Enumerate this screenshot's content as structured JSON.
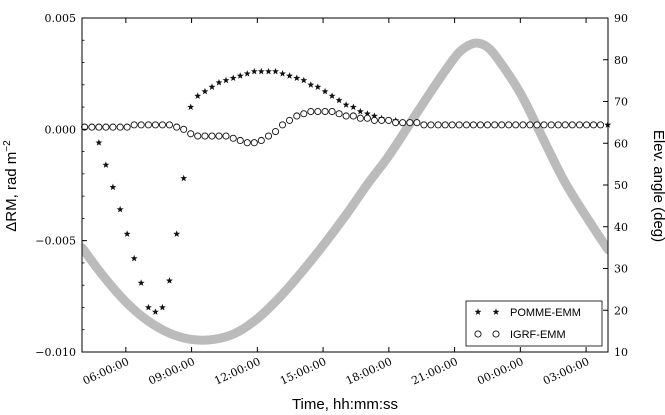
{
  "chart_data": {
    "type": "scatter",
    "xlabel": "Time, hh:mm:ss",
    "ylabel_left": "ΔRM, rad m",
    "ylabel_left_exp": "−2",
    "ylabel_right": "Elev. angle (deg)",
    "ylim_left": [
      -0.01,
      0.005
    ],
    "ylim_right": [
      10,
      90
    ],
    "xlim_hours": [
      4.0,
      28.0
    ],
    "x_ticks": [
      {
        "hour": 6,
        "label": "06:00:00"
      },
      {
        "hour": 9,
        "label": "09:00:00"
      },
      {
        "hour": 12,
        "label": "12:00:00"
      },
      {
        "hour": 15,
        "label": "15:00:00"
      },
      {
        "hour": 18,
        "label": "18:00:00"
      },
      {
        "hour": 21,
        "label": "21:00:00"
      },
      {
        "hour": 24,
        "label": "00:00:00"
      },
      {
        "hour": 27,
        "label": "03:00:00"
      }
    ],
    "y_ticks_left": [
      {
        "value": 0.005,
        "label": "0.005"
      },
      {
        "value": 0.0,
        "label": "0.000"
      },
      {
        "value": -0.005,
        "label": "−0.005"
      },
      {
        "value": -0.01,
        "label": "−0.010"
      }
    ],
    "y_ticks_right": [
      {
        "value": 10,
        "label": "10"
      },
      {
        "value": 20,
        "label": "20"
      },
      {
        "value": 30,
        "label": "30"
      },
      {
        "value": 40,
        "label": "40"
      },
      {
        "value": 50,
        "label": "50"
      },
      {
        "value": 60,
        "label": "60"
      },
      {
        "value": 70,
        "label": "70"
      },
      {
        "value": 80,
        "label": "80"
      },
      {
        "value": 90,
        "label": "90"
      }
    ],
    "legend_position": "bottom-right",
    "grid": false,
    "series": [
      {
        "name": "POMME-EMM",
        "marker": "star",
        "axis": "left",
        "x": [
          4.12,
          4.45,
          4.77,
          5.09,
          5.41,
          5.74,
          6.06,
          6.38,
          6.7,
          7.03,
          7.35,
          7.67,
          7.99,
          8.32,
          8.64,
          8.96,
          9.28,
          9.61,
          9.93,
          10.25,
          10.57,
          10.9,
          11.22,
          11.54,
          11.86,
          12.18,
          12.51,
          12.83,
          13.15,
          13.47,
          13.8,
          14.12,
          14.44,
          14.76,
          15.09,
          15.41,
          15.73,
          16.05,
          16.38,
          16.7,
          17.02,
          17.34,
          17.67,
          17.99,
          18.31,
          18.63,
          18.96,
          19.28,
          19.6,
          19.92,
          20.25,
          20.57,
          20.89,
          21.21,
          21.54,
          21.86,
          22.18,
          22.5,
          22.83,
          23.15,
          23.47,
          23.79,
          24.12,
          24.44,
          24.76,
          25.08,
          25.41,
          25.73,
          26.05,
          26.37,
          26.7,
          27.02,
          27.34,
          27.66,
          27.99
        ],
        "y": [
          0.0001,
          0.0001,
          -0.0006,
          -0.0016,
          -0.0026,
          -0.0036,
          -0.0047,
          -0.0058,
          -0.0069,
          -0.008,
          -0.0082,
          -0.008,
          -0.0068,
          -0.0047,
          -0.0022,
          0.001,
          0.0015,
          0.0017,
          0.0019,
          0.0021,
          0.0022,
          0.0023,
          0.0024,
          0.0025,
          0.0026,
          0.0026,
          0.0026,
          0.0026,
          0.0025,
          0.0024,
          0.0023,
          0.0022,
          0.002,
          0.0019,
          0.0017,
          0.0015,
          0.0013,
          0.0011,
          0.001,
          0.0008,
          0.0007,
          0.0006,
          0.0005,
          0.0004,
          0.0004,
          0.0003,
          0.0003,
          0.0003,
          0.0002,
          0.0002,
          0.0002,
          0.0002,
          0.0002,
          0.0002,
          0.0002,
          0.0002,
          0.0002,
          0.0002,
          0.0002,
          0.0002,
          0.0002,
          0.0002,
          0.0002,
          0.0002,
          0.0002,
          0.0002,
          0.0002,
          0.0002,
          0.0002,
          0.0002,
          0.0002,
          0.0002,
          0.0002,
          0.0002,
          0.0002
        ]
      },
      {
        "name": "IGRF-EMM",
        "marker": "circle",
        "axis": "left",
        "x": [
          4.12,
          4.45,
          4.77,
          5.09,
          5.41,
          5.74,
          6.06,
          6.38,
          6.7,
          7.03,
          7.35,
          7.67,
          7.99,
          8.32,
          8.64,
          8.96,
          9.28,
          9.61,
          9.93,
          10.25,
          10.57,
          10.9,
          11.22,
          11.54,
          11.86,
          12.18,
          12.51,
          12.83,
          13.15,
          13.47,
          13.8,
          14.12,
          14.44,
          14.76,
          15.09,
          15.41,
          15.73,
          16.05,
          16.38,
          16.7,
          17.02,
          17.34,
          17.67,
          17.99,
          18.31,
          18.63,
          18.96,
          19.28,
          19.6,
          19.92,
          20.25,
          20.57,
          20.89,
          21.21,
          21.54,
          21.86,
          22.18,
          22.5,
          22.83,
          23.15,
          23.47,
          23.79,
          24.12,
          24.44,
          24.76,
          25.08,
          25.41,
          25.73,
          26.05,
          26.37,
          26.7,
          27.02,
          27.34,
          27.66
        ],
        "y": [
          0.0001,
          0.0001,
          0.0001,
          0.0001,
          0.0001,
          0.0001,
          0.0001,
          0.0002,
          0.0002,
          0.0002,
          0.0002,
          0.0002,
          0.0002,
          0.0001,
          0.0,
          -0.0002,
          -0.0003,
          -0.0003,
          -0.0003,
          -0.0003,
          -0.0003,
          -0.0004,
          -0.0005,
          -0.0006,
          -0.0006,
          -0.0005,
          -0.0003,
          -0.0001,
          0.0002,
          0.0004,
          0.0006,
          0.0007,
          0.0008,
          0.0008,
          0.0008,
          0.0008,
          0.0007,
          0.0006,
          0.0006,
          0.0005,
          0.0005,
          0.0004,
          0.0004,
          0.0004,
          0.0003,
          0.0003,
          0.0003,
          0.0003,
          0.0002,
          0.0002,
          0.0002,
          0.0002,
          0.0002,
          0.0002,
          0.0002,
          0.0002,
          0.0002,
          0.0002,
          0.0002,
          0.0002,
          0.0002,
          0.0002,
          0.0002,
          0.0002,
          0.0002,
          0.0002,
          0.0002,
          0.0002,
          0.0002,
          0.0002,
          0.0002,
          0.0002,
          0.0002,
          0.0002
        ]
      },
      {
        "name": "",
        "marker": "line",
        "color": "#bbbbbb",
        "axis": "right",
        "x": [
          4.0,
          5.0,
          6.0,
          7.0,
          8.0,
          9.0,
          10.0,
          11.0,
          12.0,
          13.0,
          14.0,
          15.0,
          16.0,
          17.0,
          18.0,
          19.0,
          20.0,
          21.0,
          21.5,
          22.0,
          22.5,
          23.0,
          24.0,
          25.0,
          26.0,
          27.0,
          28.0
        ],
        "y": [
          35,
          28,
          22,
          17.5,
          14.5,
          13,
          13,
          14.5,
          18,
          23,
          29,
          35.5,
          42.5,
          50,
          57,
          65,
          73,
          80.5,
          83,
          84,
          83,
          80,
          72,
          61.5,
          51,
          42.5,
          34.5
        ]
      }
    ]
  }
}
